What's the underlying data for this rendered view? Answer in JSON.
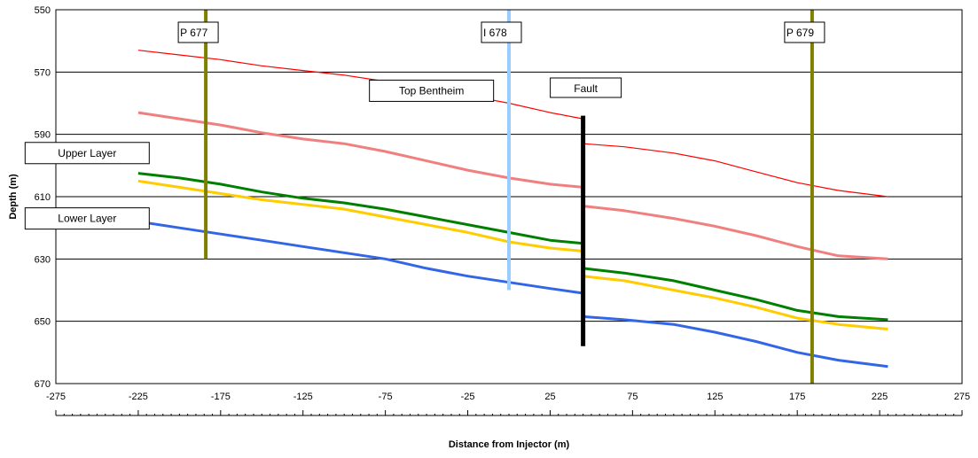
{
  "chart_data": {
    "type": "line",
    "xlabel": "Distance from Injector (m)",
    "ylabel": "Depth (m)",
    "xlim": [
      -275,
      275
    ],
    "ylim": [
      550,
      670
    ],
    "y_inverted": true,
    "x_ticks": [
      -275,
      -225,
      -175,
      -125,
      -75,
      -25,
      25,
      75,
      125,
      175,
      225,
      275
    ],
    "y_ticks": [
      550,
      570,
      590,
      610,
      630,
      650,
      670
    ],
    "grid": "horizontal",
    "fault_x": 45,
    "series": [
      {
        "color": "#ff0000",
        "width": 1.2,
        "segments": [
          {
            "x": [
              -225,
              -200,
              -175,
              -150,
              -125,
              -100,
              -75,
              -50,
              -25,
              0,
              25,
              45
            ],
            "y": [
              563,
              564.5,
              566,
              568,
              569.5,
              571,
              573,
              575,
              577.5,
              580,
              583,
              585
            ]
          },
          {
            "x": [
              45,
              70,
              100,
              125,
              150,
              175,
              200,
              230
            ],
            "y": [
              593,
              594,
              596,
              598.5,
              602,
              605.5,
              608,
              610
            ]
          }
        ]
      },
      {
        "color": "#f08080",
        "width": 3,
        "segments": [
          {
            "x": [
              -225,
              -200,
              -175,
              -150,
              -125,
              -100,
              -75,
              -50,
              -25,
              0,
              25,
              45
            ],
            "y": [
              583,
              585,
              587,
              589.5,
              591.5,
              593,
              595.5,
              598.5,
              601.5,
              604,
              606,
              607
            ]
          },
          {
            "x": [
              45,
              70,
              100,
              125,
              150,
              175,
              200,
              230
            ],
            "y": [
              613,
              614.5,
              617,
              619.5,
              622.5,
              626,
              629,
              630
            ]
          }
        ]
      },
      {
        "color": "#008000",
        "width": 3,
        "segments": [
          {
            "x": [
              -225,
              -200,
              -175,
              -150,
              -125,
              -100,
              -75,
              -50,
              -25,
              0,
              25,
              45
            ],
            "y": [
              602.5,
              604,
              606,
              608.5,
              610.5,
              612,
              614,
              616.5,
              619,
              621.5,
              624,
              625
            ]
          },
          {
            "x": [
              45,
              70,
              100,
              125,
              150,
              175,
              200,
              230
            ],
            "y": [
              633,
              634.5,
              637,
              640,
              643,
              646.5,
              648.5,
              649.5
            ]
          }
        ]
      },
      {
        "color": "#ffcc00",
        "width": 3,
        "segments": [
          {
            "x": [
              -225,
              -200,
              -175,
              -150,
              -125,
              -100,
              -75,
              -50,
              -25,
              0,
              25,
              45
            ],
            "y": [
              605,
              607,
              609,
              611,
              612.5,
              614,
              616.5,
              619,
              621.5,
              624.5,
              626.5,
              627.5
            ]
          },
          {
            "x": [
              45,
              70,
              100,
              125,
              150,
              175,
              200,
              230
            ],
            "y": [
              635.5,
              637,
              640,
              642.5,
              645.5,
              649,
              651,
              652.5
            ]
          }
        ]
      },
      {
        "color": "#3366e6",
        "width": 3,
        "segments": [
          {
            "x": [
              -225,
              -200,
              -175,
              -150,
              -125,
              -100,
              -75,
              -50,
              -25,
              0,
              25,
              45
            ],
            "y": [
              618,
              620,
              622,
              624,
              626,
              628,
              630,
              633,
              635.5,
              637.5,
              639.5,
              641
            ]
          },
          {
            "x": [
              45,
              70,
              100,
              125,
              150,
              175,
              200,
              230
            ],
            "y": [
              648.5,
              649.5,
              651,
              653.5,
              656.5,
              660,
              662.5,
              664.5
            ]
          }
        ]
      }
    ],
    "wells": [
      {
        "label": "P 677",
        "x": -184,
        "y_top": 550,
        "y_bottom": 630,
        "color": "#808000",
        "width": 4
      },
      {
        "label": "I 678",
        "x": 0,
        "y_top": 550,
        "y_bottom": 640,
        "color": "#99ccff",
        "width": 4
      },
      {
        "label": "P 679",
        "x": 184,
        "y_top": 550,
        "y_bottom": 670,
        "color": "#808000",
        "width": 4
      }
    ],
    "fault": {
      "label": "Fault",
      "x": 45,
      "y_top": 584,
      "y_bottom": 658,
      "color": "#000000",
      "width": 5
    },
    "annotations": [
      {
        "text": "Top Bentheim",
        "x": -47,
        "y": 576
      },
      {
        "text": "Upper Layer",
        "x": -256,
        "y": 596
      },
      {
        "text": "Lower Layer",
        "x": -256,
        "y": 617
      }
    ]
  }
}
